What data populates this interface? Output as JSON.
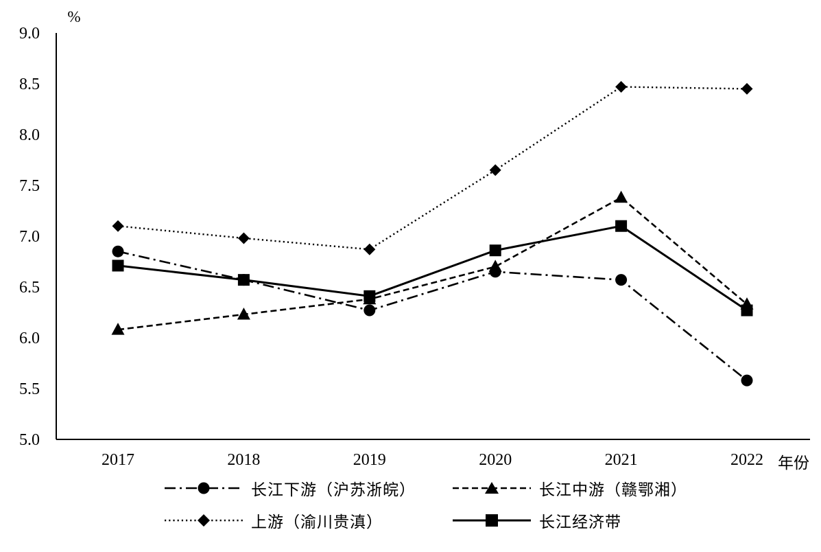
{
  "chart_data": {
    "type": "line",
    "title": "",
    "ylabel": "%",
    "xlabel": "年份",
    "x": [
      "2017",
      "2018",
      "2019",
      "2020",
      "2021",
      "2022"
    ],
    "ylim": [
      5.0,
      9.0
    ],
    "y_ticks": [
      "9.0",
      "8.5",
      "8.0",
      "7.5",
      "7.0",
      "6.5",
      "6.0",
      "5.5",
      "5.0"
    ],
    "grid": false,
    "legend_position": "bottom",
    "axis_color": "#000000",
    "series": [
      {
        "name": "长江下游（沪苏浙皖）",
        "marker": "circle",
        "line_style": "dashdot",
        "color": "#000000",
        "values": [
          6.85,
          6.57,
          6.27,
          6.65,
          6.57,
          5.58
        ]
      },
      {
        "name": "长江中游（赣鄂湘）",
        "marker": "triangle",
        "line_style": "dashed",
        "color": "#000000",
        "values": [
          6.08,
          6.23,
          6.38,
          6.7,
          7.38,
          6.33
        ]
      },
      {
        "name": "上游（渝川贵滇）",
        "marker": "diamond",
        "line_style": "dotted",
        "color": "#000000",
        "values": [
          7.1,
          6.98,
          6.87,
          7.65,
          8.47,
          8.45
        ]
      },
      {
        "name": "长江经济带",
        "marker": "square",
        "line_style": "solid",
        "color": "#000000",
        "values": [
          6.71,
          6.57,
          6.41,
          6.86,
          7.1,
          6.27
        ]
      }
    ]
  }
}
